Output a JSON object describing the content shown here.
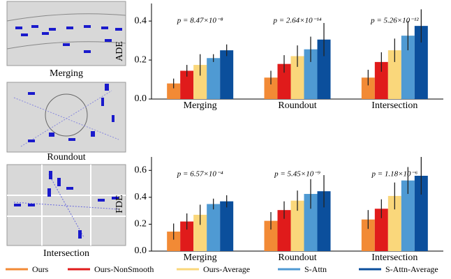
{
  "scenes": [
    "Merging",
    "Roundout",
    "Intersection"
  ],
  "chart_data": [
    {
      "type": "bar",
      "y_label": "ADE",
      "categories": [
        "Merging",
        "Roundout",
        "Intersection"
      ],
      "annotations": [
        "p = 8.47×10⁻⁸",
        "p = 2.64×10⁻¹⁴",
        "p = 5.26×10⁻¹²"
      ],
      "ylim": [
        0,
        0.49
      ],
      "yticks": [
        {
          "value": 0,
          "label": "0.0"
        },
        0.2,
        0.4
      ],
      "series": [
        {
          "name": "Ours",
          "color": "#f28a35",
          "values": [
            0.08,
            0.11,
            0.11
          ],
          "errors": [
            0.025,
            0.035,
            0.04
          ]
        },
        {
          "name": "Ours-NonSmooth",
          "color": "#e01b1b",
          "values": [
            0.145,
            0.18,
            0.19
          ],
          "errors": [
            0.03,
            0.045,
            0.05
          ]
        },
        {
          "name": "Ours-Average",
          "color": "#fad77b",
          "values": [
            0.175,
            0.22,
            0.25
          ],
          "errors": [
            0.055,
            0.055,
            0.06
          ]
        },
        {
          "name": "S-Attn",
          "color": "#4f9ad3",
          "values": [
            0.21,
            0.255,
            0.325
          ],
          "errors": [
            0.02,
            0.065,
            0.075
          ]
        },
        {
          "name": "S-Attn-Average",
          "color": "#0b4f9c",
          "values": [
            0.25,
            0.305,
            0.375
          ],
          "errors": [
            0.03,
            0.085,
            0.085
          ]
        }
      ]
    },
    {
      "type": "bar",
      "y_label": "FDE",
      "categories": [
        "Merging",
        "Roundout",
        "Intersection"
      ],
      "annotations": [
        "p = 6.57×10⁻⁴",
        "p = 5.45×10⁻⁹",
        "p = 1.18×10⁻⁶"
      ],
      "ylim": [
        0,
        0.7
      ],
      "yticks": [
        {
          "value": 0,
          "label": "0.0"
        },
        0.2,
        0.4,
        0.6
      ],
      "series": [
        {
          "name": "Ours",
          "color": "#f28a35",
          "values": [
            0.145,
            0.225,
            0.235
          ],
          "errors": [
            0.06,
            0.065,
            0.07
          ]
        },
        {
          "name": "Ours-NonSmooth",
          "color": "#e01b1b",
          "values": [
            0.22,
            0.305,
            0.315
          ],
          "errors": [
            0.06,
            0.065,
            0.07
          ]
        },
        {
          "name": "Ours-Average",
          "color": "#fad77b",
          "values": [
            0.27,
            0.375,
            0.41
          ],
          "errors": [
            0.075,
            0.075,
            0.1
          ]
        },
        {
          "name": "S-Attn",
          "color": "#4f9ad3",
          "values": [
            0.35,
            0.425,
            0.525
          ],
          "errors": [
            0.04,
            0.11,
            0.1
          ]
        },
        {
          "name": "S-Attn-Average",
          "color": "#0b4f9c",
          "values": [
            0.37,
            0.445,
            0.56
          ],
          "errors": [
            0.045,
            0.12,
            0.14
          ]
        }
      ]
    }
  ]
}
